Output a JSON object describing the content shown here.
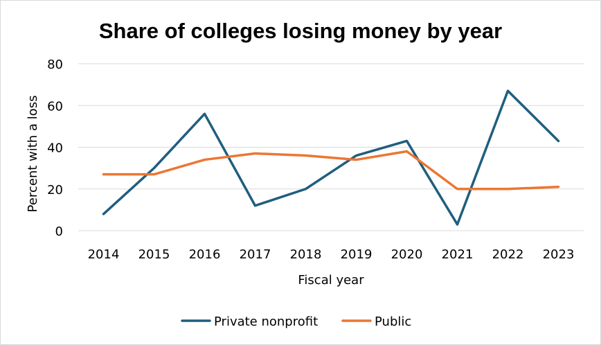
{
  "chart_data": {
    "type": "line",
    "title": "Share of colleges losing money by year",
    "xlabel": "Fiscal year",
    "ylabel": "Percent with a loss",
    "categories": [
      "2014",
      "2015",
      "2016",
      "2017",
      "2018",
      "2019",
      "2020",
      "2021",
      "2022",
      "2023"
    ],
    "ylim": [
      0,
      80
    ],
    "yticks": [
      0,
      20,
      40,
      60,
      80
    ],
    "grid": true,
    "legend_position": "bottom",
    "series": [
      {
        "name": "Private nonprofit",
        "color": "#1f5e7f",
        "values": [
          8,
          30,
          56,
          12,
          20,
          36,
          43,
          3,
          67,
          43
        ]
      },
      {
        "name": "Public",
        "color": "#ec7632",
        "values": [
          27,
          27,
          34,
          37,
          36,
          34,
          38,
          20,
          20,
          21
        ]
      }
    ]
  }
}
